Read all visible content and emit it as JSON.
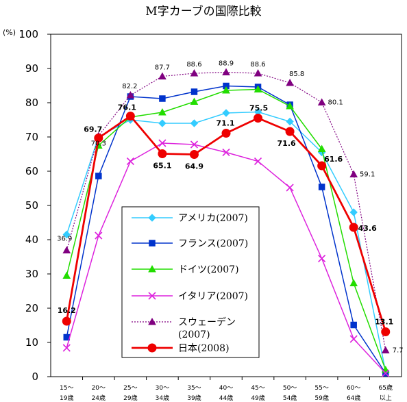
{
  "chart_data": {
    "type": "line",
    "title": "M字カーブの国際比較",
    "ylabel": "(%)",
    "ylim": [
      0,
      100
    ],
    "yticks": [
      0,
      10,
      20,
      30,
      40,
      50,
      60,
      70,
      80,
      90,
      100
    ],
    "categories": [
      [
        "15～",
        "19歳"
      ],
      [
        "20～",
        "24歳"
      ],
      [
        "25～",
        "29歳"
      ],
      [
        "30～",
        "34歳"
      ],
      [
        "35～",
        "39歳"
      ],
      [
        "40～",
        "44歳"
      ],
      [
        "45～",
        "49歳"
      ],
      [
        "50～",
        "54歳"
      ],
      [
        "55～",
        "59歳"
      ],
      [
        "60～",
        "64歳"
      ],
      [
        "65歳",
        "以上"
      ]
    ],
    "series": [
      {
        "name": "アメリカ(2007)",
        "color": "#33ccff",
        "marker": "diamond",
        "dash": "",
        "width": 1.5,
        "values": [
          41.5,
          70.1,
          75.0,
          74.0,
          74.0,
          77.0,
          77.3,
          74.5,
          65.5,
          48.0,
          1.5
        ]
      },
      {
        "name": "フランス(2007)",
        "color": "#0033cc",
        "marker": "square",
        "dash": "",
        "width": 1.5,
        "values": [
          11.5,
          58.6,
          81.8,
          81.2,
          83.2,
          84.9,
          84.6,
          79.4,
          55.4,
          15.1,
          1.0
        ]
      },
      {
        "name": "ドイツ(2007)",
        "color": "#22dd00",
        "marker": "triangle",
        "dash": "",
        "width": 1.5,
        "values": [
          29.5,
          67.5,
          75.8,
          77.2,
          80.3,
          83.6,
          83.9,
          79.0,
          66.5,
          27.3,
          2.0
        ]
      },
      {
        "name": "イタリア(2007)",
        "color": "#dd22dd",
        "marker": "x",
        "dash": "",
        "width": 1.5,
        "values": [
          8.4,
          41.2,
          62.9,
          68.2,
          67.8,
          65.5,
          62.9,
          55.2,
          34.5,
          11.0,
          1.0
        ]
      },
      {
        "name": "スウェーデン(2007)",
        "color": "#800080",
        "marker": "triangle",
        "dash": "2,2",
        "width": 1.2,
        "values": [
          36.9,
          70.3,
          82.2,
          87.7,
          88.6,
          88.9,
          88.6,
          85.8,
          80.1,
          59.1,
          7.7
        ]
      },
      {
        "name": "日本(2008)",
        "color": "#ee0000",
        "marker": "circle",
        "dash": "",
        "width": 2.8,
        "values": [
          16.2,
          69.7,
          76.1,
          65.1,
          64.9,
          71.1,
          75.5,
          71.6,
          61.6,
          43.6,
          13.1
        ]
      }
    ],
    "data_labels": {
      "sweden": [
        "36.9",
        "70.3",
        "82.2",
        "87.7",
        "88.6",
        "88.9",
        "88.6",
        "85.8",
        "80.1",
        "59.1",
        "7.7"
      ],
      "japan": [
        "16.2",
        "69.7",
        "76.1",
        "65.1",
        "64.9",
        "71.1",
        "75.5",
        "71.6",
        "61.6",
        "43.6",
        "13.1"
      ]
    },
    "legend_position": "center-left",
    "grid": false
  }
}
